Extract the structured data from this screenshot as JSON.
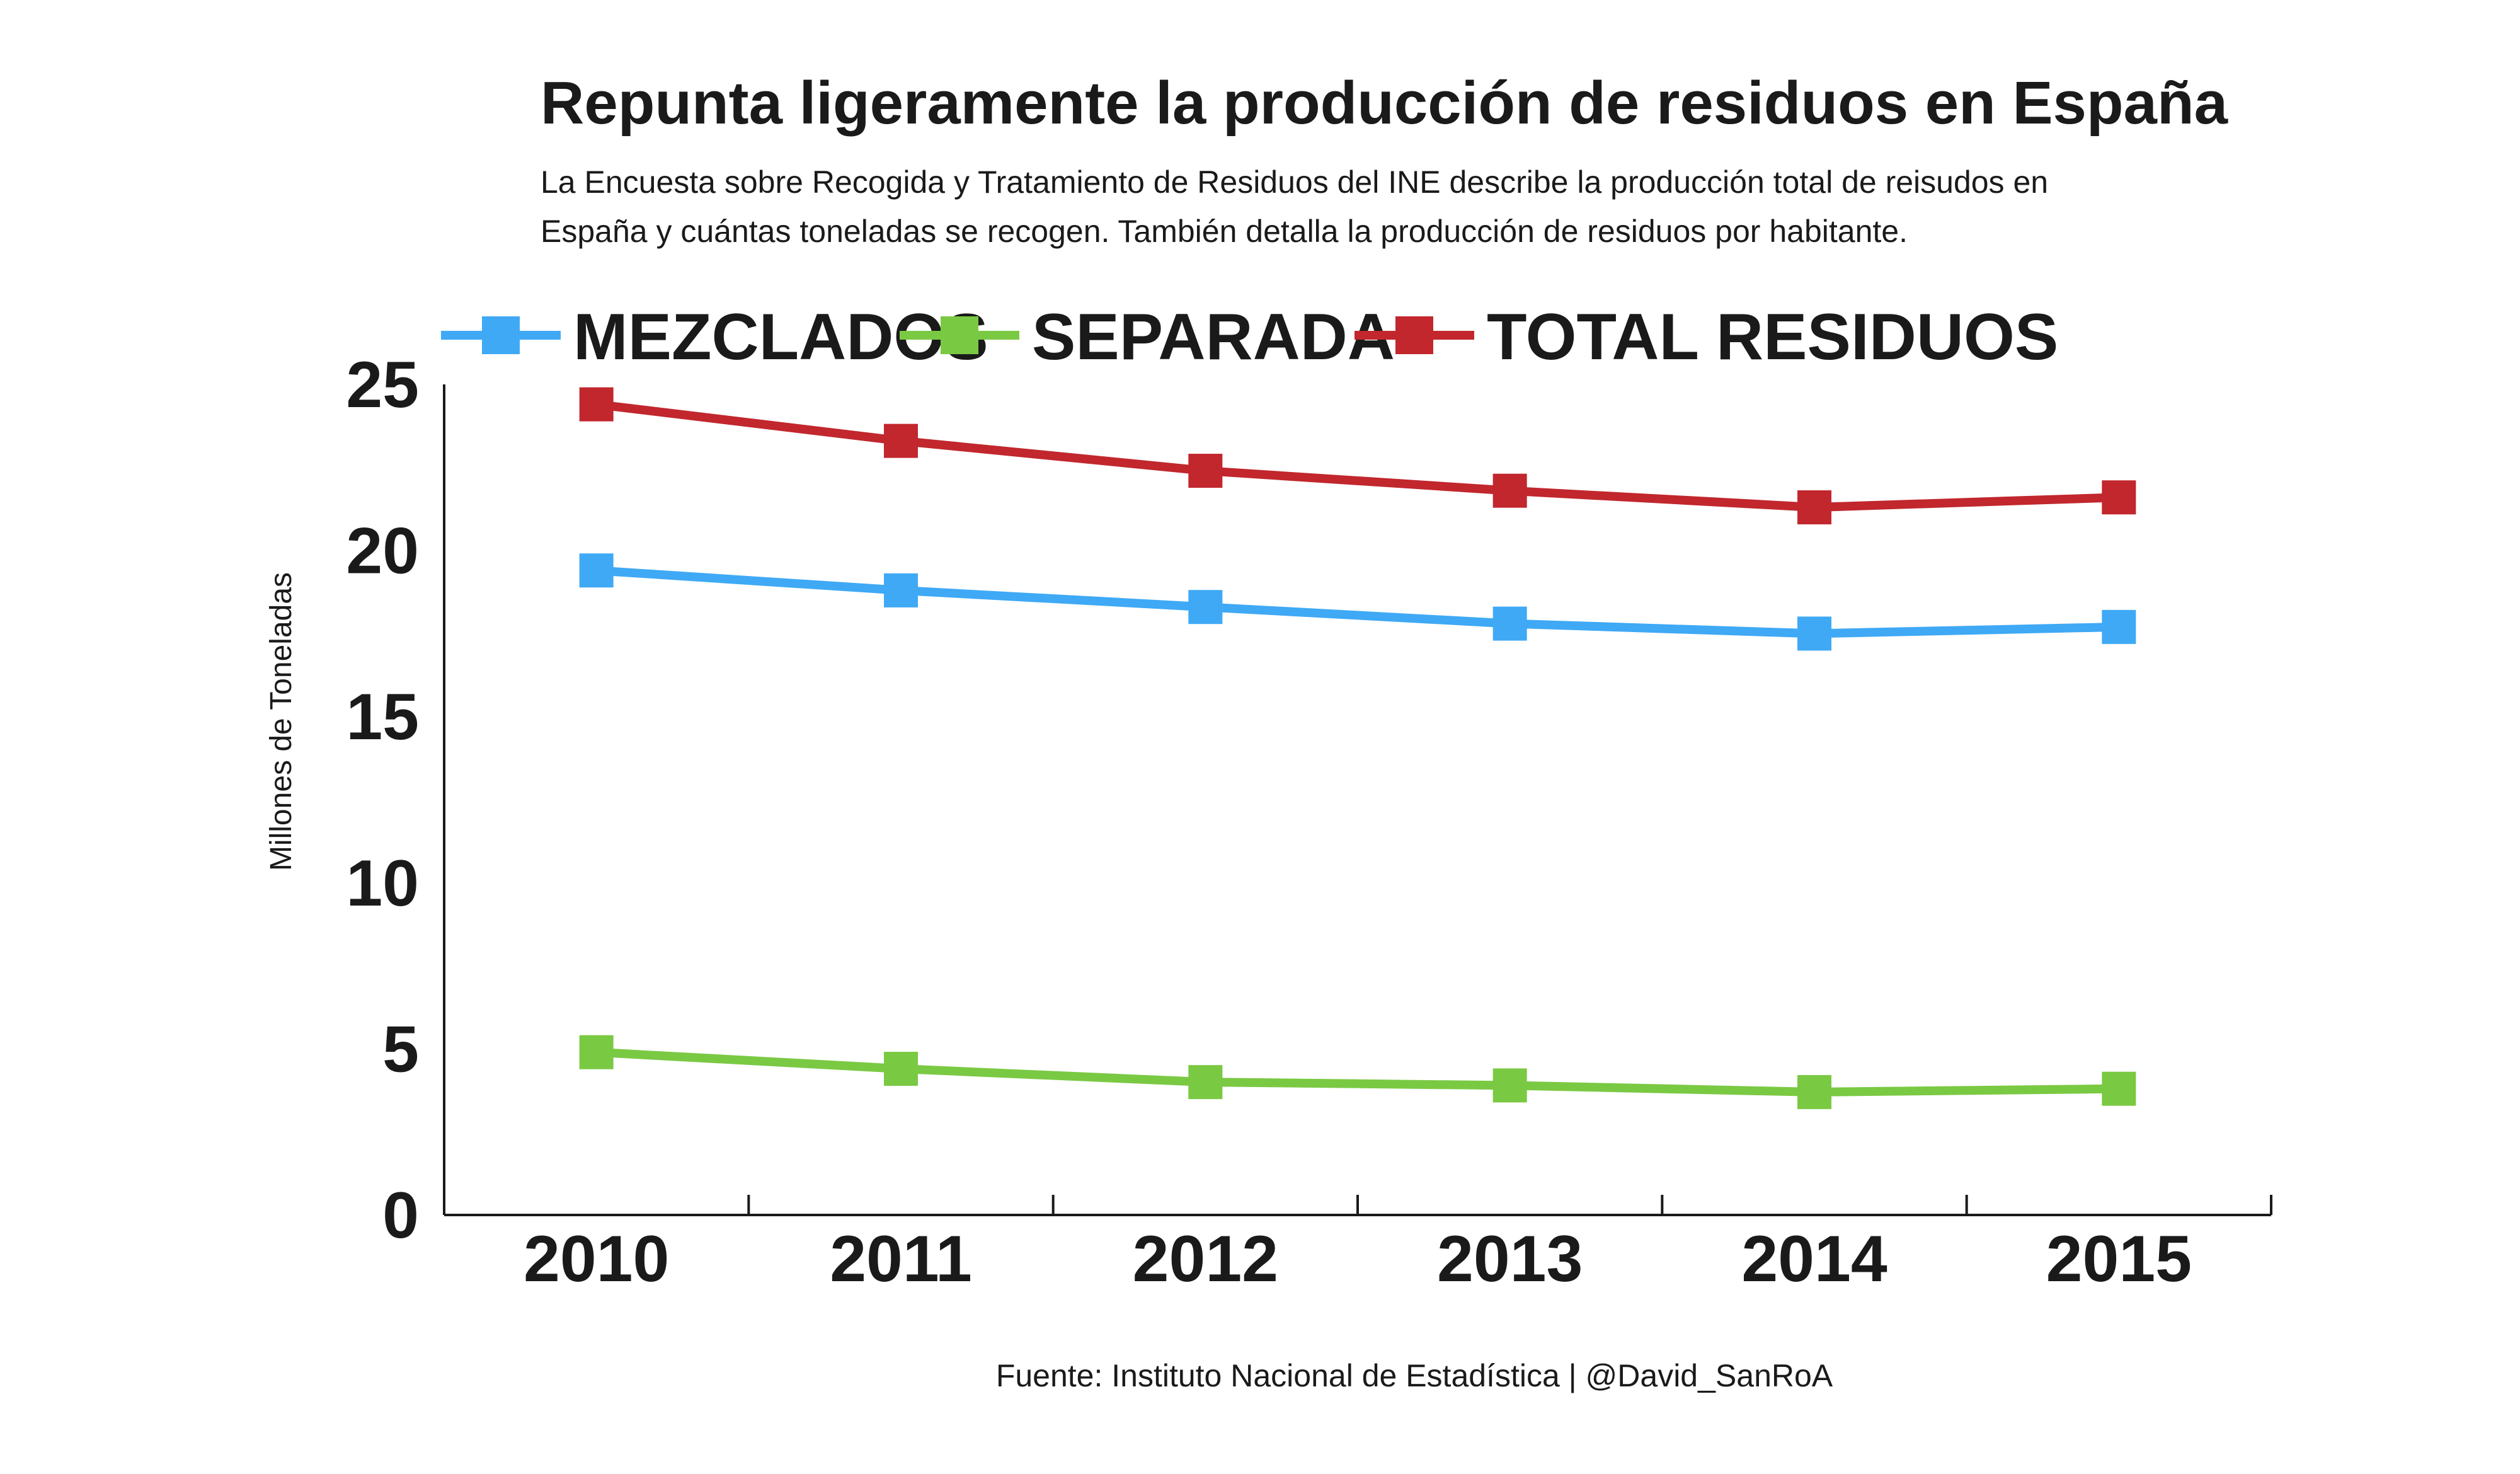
{
  "chart_data": {
    "type": "line",
    "title": "Repunta ligeramente la producción de residuos en España",
    "subtitle_lines": [
      "La Encuesta sobre Recogida y Tratamiento de Residuos del INE describe la producción total de reisudos en",
      "España y cuántas toneladas se recogen.  También detalla la producción de residuos por habitante."
    ],
    "xlabel": "",
    "ylabel": "Millones de Toneladas",
    "x": [
      "2010",
      "2011",
      "2012",
      "2013",
      "2014",
      "2015"
    ],
    "ylim": [
      0,
      25
    ],
    "yticks": [
      "0",
      "5",
      "10",
      "15",
      "20",
      "25"
    ],
    "grid": false,
    "legend_position": "top",
    "series": [
      {
        "name": "MEZCLADOS",
        "color": "#3FA9F5",
        "values": [
          19.4,
          18.8,
          18.3,
          17.8,
          17.5,
          17.7
        ]
      },
      {
        "name": "SEPARADA",
        "color": "#7AC943",
        "values": [
          4.9,
          4.4,
          4.0,
          3.9,
          3.7,
          3.8
        ]
      },
      {
        "name": "TOTAL RESIDUOS",
        "color": "#C1272D",
        "values": [
          24.4,
          23.3,
          22.4,
          21.8,
          21.3,
          21.6
        ]
      }
    ],
    "source": "Fuente: Instituto Nacional de Estadística | @David_SanRoA"
  }
}
